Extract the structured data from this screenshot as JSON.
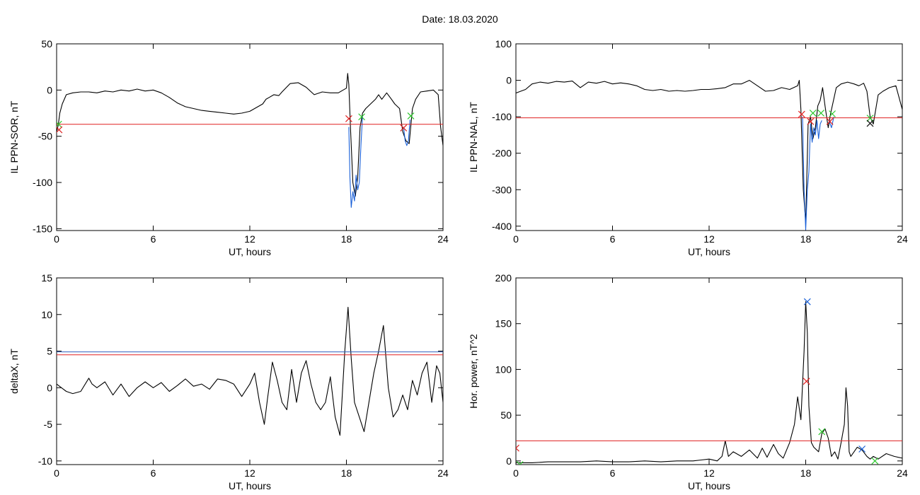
{
  "figure": {
    "date_text": "Date:  18.03.2020"
  },
  "chart_data": [
    {
      "type": "line",
      "xlabel": "UT, hours",
      "ylabel": "IL PPN-SOR, nT",
      "xlim": [
        0,
        24
      ],
      "ylim": [
        -152,
        50
      ],
      "xticks": [
        0,
        6,
        12,
        18,
        24
      ],
      "yticks": [
        -150,
        -100,
        -50,
        0,
        50
      ],
      "grid": false,
      "series": [
        {
          "color": "#000000",
          "x": [
            0.0,
            0.1,
            0.2,
            0.35,
            0.6,
            1.0,
            1.5,
            2.0,
            2.5,
            3.0,
            3.5,
            4.0,
            4.5,
            5.0,
            5.5,
            6.0,
            6.5,
            7.0,
            7.5,
            8.0,
            8.5,
            9.0,
            9.5,
            10.0,
            10.5,
            11.0,
            11.5,
            12.0,
            12.5,
            12.8,
            13.0,
            13.2,
            13.5,
            13.8,
            14.0,
            14.5,
            15.0,
            15.5,
            16.0,
            16.5,
            17.0,
            17.5,
            17.8,
            18.0,
            18.08,
            18.15,
            18.25,
            18.4,
            18.55,
            18.7,
            18.85,
            19.0,
            19.2,
            19.5,
            19.8,
            20.0,
            20.2,
            20.5,
            20.8,
            21.0,
            21.3,
            21.5,
            21.7,
            21.9,
            22.1,
            22.3,
            22.6,
            23.0,
            23.4,
            23.7,
            23.85,
            24.0
          ],
          "y": [
            -45,
            -38,
            -25,
            -15,
            -5,
            -3,
            -2,
            -2,
            -3,
            -1,
            -2,
            0,
            -1,
            1,
            -1,
            0,
            -3,
            -8,
            -14,
            -18,
            -20,
            -22,
            -23,
            -24,
            -25,
            -26,
            -25,
            -23,
            -18,
            -15,
            -10,
            -8,
            -5,
            -6,
            -2,
            7,
            8,
            3,
            -5,
            -2,
            -3,
            -3,
            0,
            2,
            18,
            6,
            -40,
            -100,
            -115,
            -95,
            -40,
            -25,
            -20,
            -15,
            -10,
            -5,
            -10,
            -3,
            -10,
            -15,
            -20,
            -45,
            -55,
            -58,
            -20,
            -10,
            -2,
            -1,
            0,
            -5,
            -40,
            -60
          ]
        },
        {
          "color": "#1a60d8",
          "x": [
            18.15,
            18.22,
            18.3,
            18.4,
            18.5,
            18.6,
            18.7,
            18.8,
            18.9,
            19.0
          ],
          "y": [
            -40,
            -95,
            -127,
            -110,
            -120,
            -92,
            -108,
            -100,
            -60,
            -28
          ]
        },
        {
          "color": "#1a60d8",
          "x": [
            21.55,
            21.65,
            21.75,
            21.85,
            21.95
          ],
          "y": [
            -40,
            -55,
            -60,
            -55,
            -32
          ]
        }
      ],
      "threshold": {
        "color": "#e02020",
        "y": -37
      },
      "markers": [
        {
          "x": 0.12,
          "y": -37,
          "color": "#2ec82e"
        },
        {
          "x": 0.15,
          "y": -43,
          "color": "#e02020"
        },
        {
          "x": 18.15,
          "y": -31,
          "color": "#e02020"
        },
        {
          "x": 18.95,
          "y": -29,
          "color": "#2ec82e"
        },
        {
          "x": 21.55,
          "y": -41,
          "color": "#e02020"
        },
        {
          "x": 22.0,
          "y": -28,
          "color": "#2ec82e"
        }
      ]
    },
    {
      "type": "line",
      "xlabel": "UT, hours",
      "ylabel": "IL PPN-NAL, nT",
      "xlim": [
        0,
        24
      ],
      "ylim": [
        -412,
        100
      ],
      "xticks": [
        0,
        6,
        12,
        18,
        24
      ],
      "yticks": [
        -400,
        -300,
        -200,
        -100,
        0,
        100
      ],
      "grid": false,
      "series": [
        {
          "color": "#000000",
          "x": [
            0.0,
            0.3,
            0.6,
            1.0,
            1.5,
            2.0,
            2.5,
            3.0,
            3.5,
            4.0,
            4.5,
            5.0,
            5.5,
            6.0,
            6.5,
            7.0,
            7.5,
            8.0,
            8.5,
            9.0,
            9.5,
            10.0,
            10.5,
            11.0,
            11.5,
            12.0,
            12.5,
            13.0,
            13.5,
            14.0,
            14.5,
            15.0,
            15.5,
            16.0,
            16.5,
            17.0,
            17.5,
            17.6,
            17.7,
            17.85,
            18.0,
            18.15,
            18.3,
            18.45,
            18.6,
            18.75,
            18.9,
            19.05,
            19.2,
            19.4,
            19.55,
            19.7,
            19.9,
            20.2,
            20.6,
            21.0,
            21.3,
            21.6,
            21.8,
            22.0,
            22.2,
            22.5,
            22.8,
            23.2,
            23.6,
            24.0
          ],
          "y": [
            -35,
            -30,
            -25,
            -10,
            -5,
            -8,
            -3,
            -5,
            -2,
            -20,
            -5,
            -8,
            -3,
            -10,
            -7,
            -10,
            -15,
            -25,
            -28,
            -25,
            -30,
            -28,
            -30,
            -28,
            -25,
            -25,
            -23,
            -20,
            -10,
            -10,
            0,
            -15,
            -30,
            -28,
            -20,
            -25,
            -15,
            0,
            -80,
            -300,
            -390,
            -120,
            -100,
            -160,
            -130,
            -70,
            -55,
            -20,
            -70,
            -130,
            -90,
            -60,
            -20,
            -10,
            -5,
            -10,
            -15,
            -8,
            -30,
            -100,
            -120,
            -40,
            -30,
            -20,
            -15,
            -80
          ]
        },
        {
          "color": "#1a60d8",
          "x": [
            17.8,
            17.9,
            18.0,
            18.1,
            18.2,
            18.3,
            18.4,
            18.5,
            18.6,
            18.7,
            18.8,
            18.9,
            19.0
          ],
          "y": [
            -100,
            -300,
            -410,
            -300,
            -250,
            -120,
            -170,
            -130,
            -150,
            -110,
            -160,
            -120,
            -110
          ]
        },
        {
          "color": "#1a60d8",
          "x": [
            19.45,
            19.6,
            19.75
          ],
          "y": [
            -110,
            -130,
            -100
          ]
        }
      ],
      "threshold": {
        "color": "#e02020",
        "y": -103
      },
      "markers": [
        {
          "x": 17.75,
          "y": -93,
          "color": "#e02020"
        },
        {
          "x": 18.3,
          "y": -113,
          "color": "#e02020"
        },
        {
          "x": 18.45,
          "y": -90,
          "color": "#2ec82e"
        },
        {
          "x": 18.95,
          "y": -90,
          "color": "#2ec82e"
        },
        {
          "x": 19.5,
          "y": -113,
          "color": "#e02020"
        },
        {
          "x": 19.65,
          "y": -92,
          "color": "#2ec82e"
        },
        {
          "x": 22.0,
          "y": -104,
          "color": "#2ec82e"
        },
        {
          "x": 22.0,
          "y": -118,
          "color": "#101010"
        }
      ]
    },
    {
      "type": "line",
      "xlabel": "UT, hours",
      "ylabel": "deltaX, nT",
      "xlim": [
        0,
        24
      ],
      "ylim": [
        -10.5,
        15
      ],
      "xticks": [
        0,
        6,
        12,
        18,
        24
      ],
      "yticks": [
        -10,
        -5,
        0,
        5,
        10,
        15
      ],
      "grid": false,
      "series": [
        {
          "color": "#000000",
          "x": [
            0.0,
            0.3,
            0.6,
            1.0,
            1.5,
            2.0,
            2.2,
            2.5,
            3.0,
            3.5,
            4.0,
            4.5,
            5.0,
            5.5,
            6.0,
            6.5,
            7.0,
            7.5,
            8.0,
            8.5,
            9.0,
            9.5,
            10.0,
            10.5,
            11.0,
            11.5,
            12.0,
            12.3,
            12.6,
            12.9,
            13.1,
            13.4,
            13.7,
            14.0,
            14.3,
            14.6,
            14.9,
            15.2,
            15.5,
            15.8,
            16.1,
            16.4,
            16.7,
            17.0,
            17.3,
            17.6,
            17.9,
            18.1,
            18.3,
            18.5,
            18.8,
            19.1,
            19.4,
            19.7,
            20.0,
            20.3,
            20.6,
            20.9,
            21.2,
            21.5,
            21.8,
            22.1,
            22.4,
            22.7,
            23.0,
            23.3,
            23.6,
            23.8,
            24.0
          ],
          "y": [
            0.5,
            0,
            -0.5,
            -0.8,
            -0.5,
            1.3,
            0.5,
            0,
            0.8,
            -1,
            0.5,
            -1.2,
            0,
            0.8,
            0,
            0.7,
            -0.5,
            0.3,
            1.2,
            0.2,
            0.5,
            -0.2,
            1.2,
            1.0,
            0.5,
            -1.2,
            0.5,
            2,
            -2,
            -5,
            -1.5,
            3.5,
            1,
            -2,
            -3,
            2.5,
            -2,
            2,
            3.7,
            0.5,
            -2,
            -3,
            -2,
            1.5,
            -4,
            -6.5,
            5,
            11,
            4,
            -2,
            -4,
            -6,
            -2,
            2,
            5,
            8.5,
            0,
            -4,
            -3,
            -1,
            -3,
            1,
            -1,
            2,
            3.5,
            -2,
            3,
            2,
            -2
          ]
        }
      ],
      "thresholds": [
        {
          "color": "#3060c0",
          "y": 4.9
        },
        {
          "color": "#e02020",
          "y": 4.5
        }
      ]
    },
    {
      "type": "line",
      "xlabel": "UT, hours",
      "ylabel": "Hor. power, nT^2",
      "xlim": [
        0,
        24
      ],
      "ylim": [
        -4,
        200
      ],
      "xticks": [
        0,
        6,
        12,
        18,
        24
      ],
      "yticks": [
        0,
        50,
        100,
        150,
        200
      ],
      "grid": false,
      "series": [
        {
          "color": "#000000",
          "x": [
            0.0,
            1.0,
            2.0,
            3.0,
            4.0,
            5.0,
            6.0,
            7.0,
            8.0,
            9.0,
            10.0,
            11.0,
            11.5,
            12.0,
            12.5,
            12.8,
            13.0,
            13.2,
            13.5,
            14.0,
            14.5,
            15.0,
            15.3,
            15.6,
            16.0,
            16.3,
            16.6,
            17.0,
            17.3,
            17.5,
            17.7,
            17.9,
            18.0,
            18.1,
            18.2,
            18.35,
            18.5,
            18.8,
            19.0,
            19.2,
            19.4,
            19.6,
            19.8,
            20.0,
            20.2,
            20.4,
            20.5,
            20.6,
            20.7,
            20.8,
            21.0,
            21.2,
            21.5,
            21.8,
            22.0,
            22.2,
            22.5,
            23.0,
            23.5,
            24.0
          ],
          "y": [
            -2,
            -2,
            -1,
            -1,
            -1,
            0,
            -1,
            -1,
            0,
            -1,
            0,
            0,
            1,
            2,
            0,
            5,
            22,
            5,
            10,
            5,
            12,
            3,
            14,
            4,
            18,
            8,
            3,
            20,
            40,
            70,
            45,
            120,
            174,
            140,
            60,
            20,
            15,
            10,
            30,
            35,
            25,
            5,
            10,
            2,
            20,
            40,
            80,
            60,
            10,
            5,
            10,
            15,
            12,
            5,
            2,
            5,
            2,
            8,
            5,
            3
          ]
        }
      ],
      "threshold": {
        "color": "#e02020",
        "y": 22
      },
      "markers": [
        {
          "x": 0.0,
          "y": 14,
          "color": "#e02020"
        },
        {
          "x": 0.25,
          "y": -4,
          "color": "#2ec82e"
        },
        {
          "x": 18.05,
          "y": 87,
          "color": "#e02020"
        },
        {
          "x": 18.1,
          "y": 174,
          "color": "#1a60d8"
        },
        {
          "x": 19.0,
          "y": 32,
          "color": "#2ec82e"
        },
        {
          "x": 21.5,
          "y": 13,
          "color": "#1a60d8"
        },
        {
          "x": 22.3,
          "y": 0,
          "color": "#2ec82e"
        }
      ]
    }
  ]
}
